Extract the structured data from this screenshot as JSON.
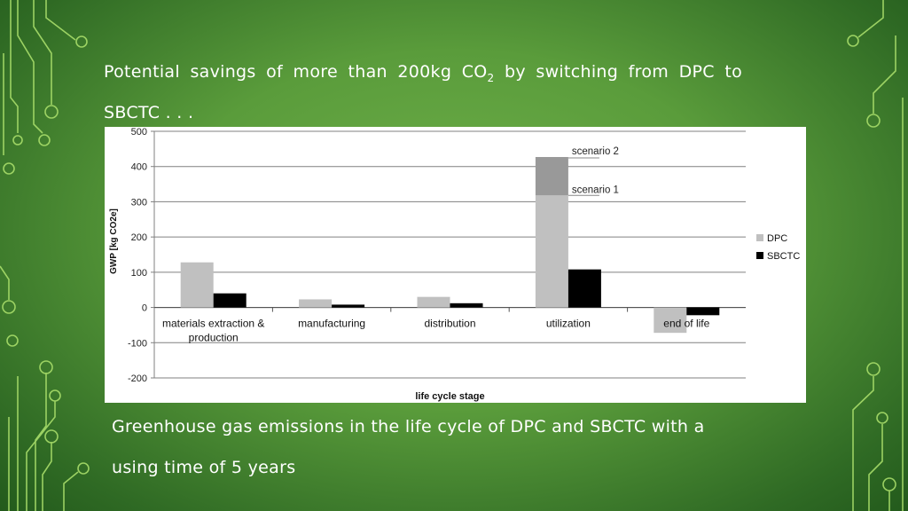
{
  "slide": {
    "title_pre": "Potential savings of more than 200kg CO",
    "title_sub": "2",
    "title_post": " by switching from DPC to SBCTC . . .",
    "caption": "Greenhouse gas emissions in the life cycle of DPC and SBCTC with a using time of 5 years"
  },
  "chart_data": {
    "type": "bar",
    "categories": [
      "materials extraction & production",
      "manufacturing",
      "distribution",
      "utilization",
      "end of life"
    ],
    "category_label_lines": [
      [
        "materials extraction &",
        "production"
      ],
      [
        "manufacturing"
      ],
      [
        "distribution"
      ],
      [
        "utilization"
      ],
      [
        "end of life"
      ]
    ],
    "series": [
      {
        "name": "DPC",
        "values": [
          128,
          23,
          30,
          318,
          -72
        ],
        "color": "#c0c0c0"
      },
      {
        "name": "SBCTC",
        "values": [
          40,
          8,
          12,
          108,
          -22
        ],
        "color": "#000000"
      }
    ],
    "stacked_extra": {
      "category": "utilization",
      "from": 318,
      "to": 427,
      "color": "#999999"
    },
    "annotations": [
      "scenario 2",
      "scenario 1"
    ],
    "xlabel": "life cycle stage",
    "ylabel": "GWP [kg CO2e]",
    "ylim": [
      -200,
      500
    ],
    "yticks": [
      -200,
      -100,
      0,
      100,
      200,
      300,
      400,
      500
    ],
    "grid": true,
    "legend_position": "right"
  }
}
